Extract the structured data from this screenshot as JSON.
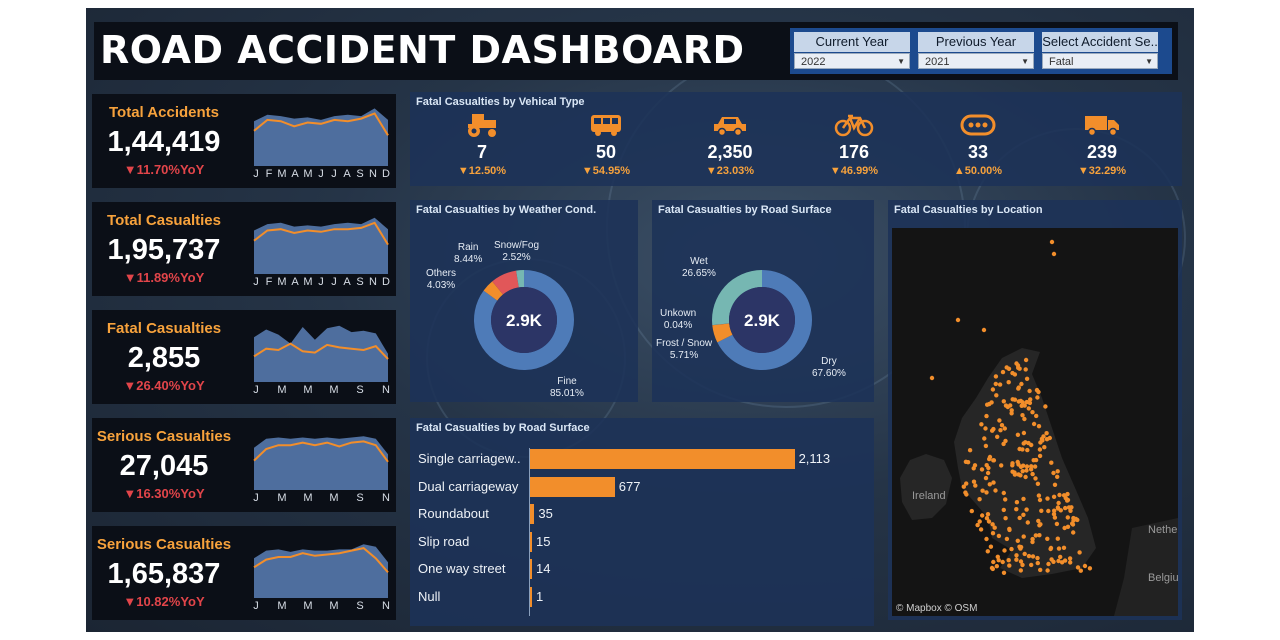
{
  "title": "ROAD ACCIDENT DASHBOARD",
  "filters": [
    {
      "label": "Current Year",
      "value": "2022"
    },
    {
      "label": "Previous Year",
      "value": "2021"
    },
    {
      "label": "Select Accident Se..",
      "value": "Fatal"
    }
  ],
  "kpis": [
    {
      "label": "Total Accidents",
      "value": "1,44,419",
      "yoy": "▼11.70%YoY",
      "months": [
        "J",
        "F",
        "M",
        "A",
        "M",
        "J",
        "J",
        "A",
        "S",
        "N",
        "D"
      ],
      "current": [
        0.55,
        0.72,
        0.7,
        0.62,
        0.68,
        0.66,
        0.72,
        0.7,
        0.74,
        0.82,
        0.48
      ],
      "previous": [
        0.7,
        0.8,
        0.78,
        0.74,
        0.76,
        0.72,
        0.78,
        0.8,
        0.78,
        0.9,
        0.72
      ]
    },
    {
      "label": "Total Casualties",
      "value": "1,95,737",
      "yoy": "▼11.89%YoY",
      "months": [
        "J",
        "F",
        "M",
        "A",
        "M",
        "J",
        "J",
        "A",
        "S",
        "N",
        "D"
      ],
      "current": [
        0.52,
        0.68,
        0.7,
        0.64,
        0.68,
        0.66,
        0.7,
        0.7,
        0.72,
        0.8,
        0.46
      ],
      "previous": [
        0.68,
        0.78,
        0.8,
        0.74,
        0.76,
        0.74,
        0.78,
        0.8,
        0.78,
        0.88,
        0.7
      ]
    },
    {
      "label": "Fatal Casualties",
      "value": "2,855",
      "yoy": "▼26.40%YoY",
      "months": [
        "J",
        "M",
        "M",
        "M",
        "S",
        "N"
      ],
      "current": [
        0.4,
        0.52,
        0.5,
        0.6,
        0.48,
        0.46,
        0.58,
        0.54,
        0.52,
        0.5,
        0.56,
        0.36
      ],
      "previous": [
        0.7,
        0.82,
        0.74,
        0.6,
        0.86,
        0.66,
        0.84,
        0.88,
        0.78,
        0.8,
        0.76,
        0.44
      ]
    },
    {
      "label": "Serious Casualties",
      "value": "27,045",
      "yoy": "▼16.30%YoY",
      "months": [
        "J",
        "M",
        "M",
        "M",
        "S",
        "N"
      ],
      "current": [
        0.46,
        0.64,
        0.7,
        0.7,
        0.74,
        0.7,
        0.74,
        0.68,
        0.74,
        0.76,
        0.7,
        0.44
      ],
      "previous": [
        0.66,
        0.8,
        0.82,
        0.8,
        0.82,
        0.8,
        0.82,
        0.8,
        0.82,
        0.84,
        0.8,
        0.56
      ]
    },
    {
      "label": "Serious Casualties",
      "value": "1,65,837",
      "yoy": "▼10.82%YoY",
      "months": [
        "J",
        "M",
        "M",
        "M",
        "S",
        "N"
      ],
      "current": [
        0.48,
        0.6,
        0.64,
        0.64,
        0.7,
        0.66,
        0.68,
        0.7,
        0.74,
        0.78,
        0.62,
        0.4
      ],
      "previous": [
        0.62,
        0.74,
        0.76,
        0.72,
        0.76,
        0.74,
        0.74,
        0.76,
        0.76,
        0.84,
        0.8,
        0.56
      ]
    }
  ],
  "vehicle_panel": {
    "title": "Fatal Casualties by Vehical Type",
    "items": [
      {
        "icon": "tractor-icon",
        "value": "7",
        "yoy": "▼12.50%"
      },
      {
        "icon": "bus-icon",
        "value": "50",
        "yoy": "▼54.95%"
      },
      {
        "icon": "car-icon",
        "value": "2,350",
        "yoy": "▼23.03%"
      },
      {
        "icon": "bicycle-icon",
        "value": "176",
        "yoy": "▼46.99%"
      },
      {
        "icon": "other-vehicle-icon",
        "value": "33",
        "yoy": "▲50.00%"
      },
      {
        "icon": "truck-icon",
        "value": "239",
        "yoy": "▼32.29%"
      }
    ]
  },
  "weather_chart": {
    "title": "Fatal Casualties by Weather Cond.",
    "center": "2.9K",
    "slices": [
      {
        "name": "Fine",
        "pct": 85.01,
        "label": "85.01%",
        "color": "#4e7bb8"
      },
      {
        "name": "Others",
        "pct": 4.03,
        "label": "4.03%",
        "color": "#f28e2b"
      },
      {
        "name": "Rain",
        "pct": 8.44,
        "label": "8.44%",
        "color": "#e15759"
      },
      {
        "name": "Snow/Fog",
        "pct": 2.52,
        "label": "2.52%",
        "color": "#76b7b2"
      }
    ]
  },
  "surface_chart": {
    "title": "Fatal Casualties by Road Surface",
    "center": "2.9K",
    "slices": [
      {
        "name": "Dry",
        "pct": 67.6,
        "label": "67.60%",
        "color": "#4e7bb8"
      },
      {
        "name": "Frost / Snow",
        "pct": 5.71,
        "label": "5.71%",
        "color": "#f28e2b"
      },
      {
        "name": "Unkown",
        "pct": 0.04,
        "label": "0.04%",
        "color": "#e15759"
      },
      {
        "name": "Wet",
        "pct": 26.65,
        "label": "26.65%",
        "color": "#76b7b2"
      }
    ]
  },
  "map": {
    "title": "Fatal Casualties by Location",
    "labels": [
      "Ireland",
      "Nethe",
      "Belgiu"
    ],
    "credit": "© Mapbox © OSM"
  },
  "chart_data": {
    "type": "bar",
    "title": "Fatal Casualties by Road Surface",
    "categories": [
      "Single carriagew..",
      "Dual carriageway",
      "Roundabout",
      "Slip road",
      "One way street",
      "Null"
    ],
    "values": [
      2113,
      677,
      35,
      15,
      14,
      1
    ],
    "value_labels": [
      "2,113",
      "677",
      "35",
      "15",
      "14",
      "1"
    ],
    "xlim": [
      0,
      2300
    ],
    "color": "#f28e2b"
  }
}
